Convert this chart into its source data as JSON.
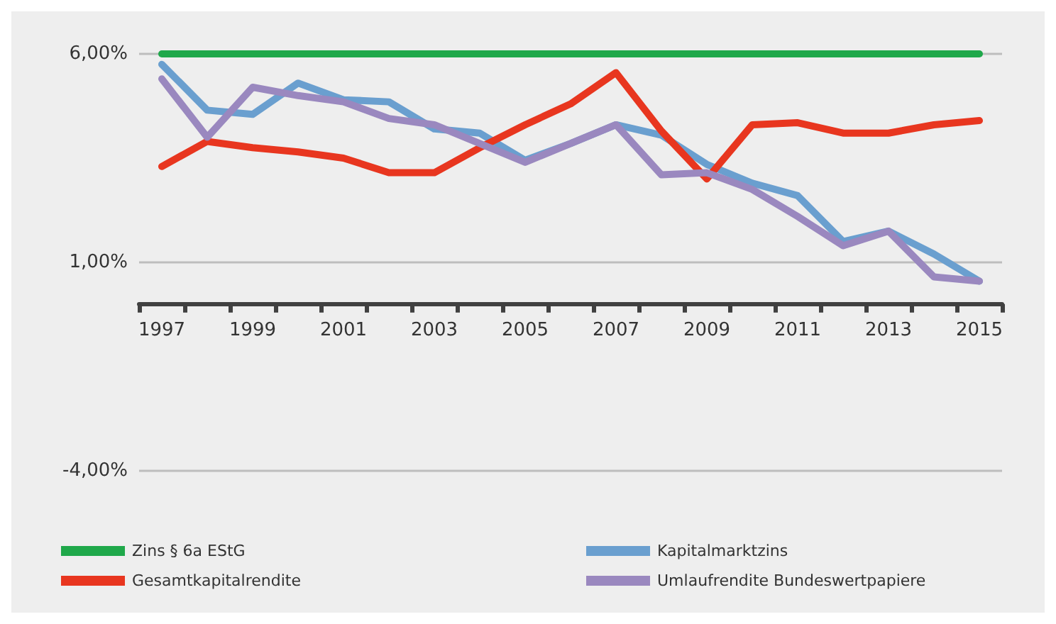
{
  "chart_data": {
    "type": "line",
    "categories": [
      "1997",
      null,
      "1999",
      null,
      "2001",
      null,
      "2003",
      null,
      "2005",
      null,
      "2007",
      null,
      "2009",
      null,
      "2011",
      null,
      "2013",
      null,
      "2015"
    ],
    "series": [
      {
        "name": "Zins § 6a EStG",
        "color": "#1fa84a",
        "values": [
          6,
          6,
          6,
          6,
          6,
          6,
          6,
          6,
          6,
          6,
          6,
          6,
          6,
          6,
          6,
          6,
          6,
          6,
          6
        ]
      },
      {
        "name": "Kapitalmarktzins",
        "color": "#6a9fcf",
        "values": [
          5.75,
          4.65,
          4.55,
          5.3,
          4.9,
          4.85,
          4.2,
          4.1,
          3.45,
          3.85,
          4.3,
          4.05,
          3.35,
          2.9,
          2.6,
          1.5,
          1.75,
          1.2,
          0.55
        ]
      },
      {
        "name": "Gesamtkapitalrendite",
        "color": "#e8361f",
        "values": [
          3.3,
          3.9,
          3.75,
          3.65,
          3.5,
          3.15,
          3.15,
          3.75,
          4.3,
          4.8,
          5.55,
          4.15,
          3.0,
          4.3,
          4.35,
          4.1,
          4.1,
          4.3,
          4.4
        ]
      },
      {
        "name": "Umlaufrendite Bundeswertpapiere",
        "color": "#9a88bf",
        "values": [
          5.4,
          4.0,
          5.2,
          5.0,
          4.85,
          4.45,
          4.3,
          3.85,
          3.4,
          3.85,
          4.3,
          3.1,
          3.15,
          2.75,
          2.1,
          1.4,
          1.75,
          0.65,
          0.55
        ]
      }
    ],
    "ylim": [
      -4,
      6
    ],
    "yticks": [
      {
        "value": 6,
        "label": "6,00%"
      },
      {
        "value": 1,
        "label": "1,00%"
      },
      {
        "value": -4,
        "label": "-4,00%"
      }
    ],
    "grid": "y",
    "legend": "bottom",
    "marker": "none",
    "line_style": "solid"
  }
}
